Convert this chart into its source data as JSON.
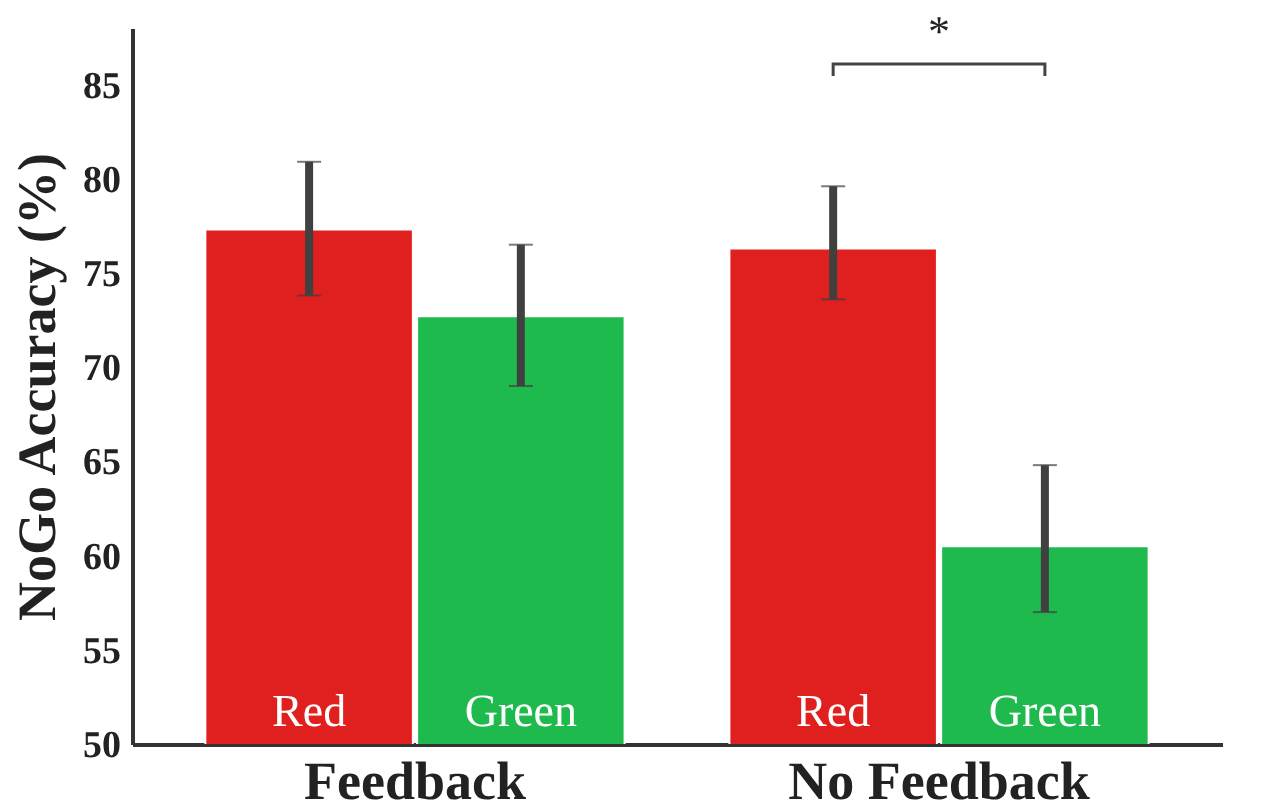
{
  "chart_data": {
    "type": "bar",
    "ylabel": "NoGo Accuracy (%)",
    "categories": [
      "Feedback",
      "No Feedback"
    ],
    "series": [
      {
        "name": "Red",
        "color": "#e01f1f",
        "values": [
          77.3,
          76.3
        ],
        "errors": [
          [
            73.8,
            80.9
          ],
          [
            73.6,
            79.6
          ]
        ]
      },
      {
        "name": "Green",
        "color": "#1fba4d",
        "values": [
          72.7,
          60.5
        ],
        "errors": [
          [
            69.0,
            76.5
          ],
          [
            57.0,
            64.8
          ]
        ]
      }
    ],
    "ylim": [
      50,
      88
    ],
    "yticks": [
      50,
      55,
      60,
      65,
      70,
      75,
      80,
      85
    ],
    "grid": false,
    "legend": false,
    "annotations": [
      "*"
    ]
  }
}
